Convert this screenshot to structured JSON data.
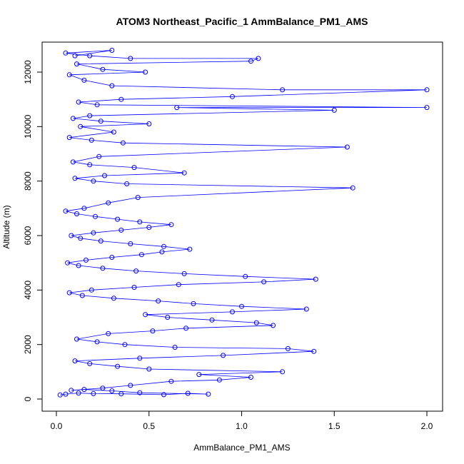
{
  "chart_data": {
    "type": "scatter",
    "title": "ATOM3 Northeast_Pacific_1 AmmBalance_PM1_AMS",
    "xlabel": "AmmBalance_PM1_AMS",
    "ylabel": "Altitude (m)",
    "xlim": [
      0,
      2.0
    ],
    "ylim": [
      0,
      12800
    ],
    "x_ticks": [
      "0.0",
      "0.5",
      "1.0",
      "1.5",
      "2.0"
    ],
    "y_ticks": [
      "0",
      "2000",
      "4000",
      "6000",
      "8000",
      "10000",
      "12000"
    ],
    "series_color": "#0000ff",
    "marker": "open-circle",
    "line": "connected",
    "grid": false,
    "legend": "none",
    "x": [
      0.02,
      0.05,
      0.12,
      0.2,
      0.35,
      0.58,
      0.71,
      0.82,
      0.45,
      0.3,
      0.15,
      0.08,
      0.25,
      0.4,
      0.62,
      0.88,
      1.05,
      0.77,
      1.22,
      0.5,
      0.33,
      0.18,
      0.1,
      0.45,
      0.9,
      1.39,
      1.25,
      0.64,
      0.37,
      0.22,
      0.11,
      0.28,
      0.52,
      0.7,
      1.17,
      1.08,
      0.84,
      0.6,
      0.48,
      0.95,
      1.35,
      1.0,
      0.74,
      0.55,
      0.31,
      0.14,
      0.07,
      0.19,
      0.42,
      0.66,
      1.12,
      1.4,
      1.02,
      0.69,
      0.43,
      0.25,
      0.12,
      0.06,
      0.16,
      0.3,
      0.46,
      0.57,
      0.72,
      0.58,
      0.4,
      0.24,
      0.13,
      0.08,
      0.2,
      0.35,
      0.5,
      0.62,
      0.45,
      0.33,
      0.21,
      0.11,
      0.05,
      0.15,
      0.28,
      0.44,
      1.6,
      0.38,
      0.2,
      0.1,
      0.26,
      0.69,
      0.42,
      0.18,
      0.09,
      0.23,
      1.57,
      0.36,
      0.19,
      0.07,
      0.31,
      0.13,
      0.5,
      0.24,
      0.09,
      0.18,
      1.5,
      0.65,
      2.0,
      0.22,
      0.12,
      0.35,
      0.95,
      2.0,
      1.22,
      0.3,
      0.15,
      0.07,
      0.48,
      0.25,
      0.11,
      1.05,
      1.09,
      0.4,
      0.18,
      0.05,
      0.3,
      0.1
    ],
    "y": [
      150,
      180,
      220,
      200,
      190,
      160,
      210,
      180,
      230,
      300,
      350,
      320,
      400,
      500,
      650,
      700,
      800,
      900,
      1000,
      1100,
      1200,
      1300,
      1400,
      1500,
      1600,
      1750,
      1850,
      1900,
      2000,
      2100,
      2200,
      2400,
      2500,
      2600,
      2700,
      2800,
      2900,
      3000,
      3100,
      3200,
      3300,
      3400,
      3500,
      3600,
      3700,
      3800,
      3900,
      4000,
      4100,
      4200,
      4300,
      4400,
      4500,
      4600,
      4700,
      4800,
      4900,
      5000,
      5100,
      5200,
      5300,
      5400,
      5500,
      5600,
      5700,
      5800,
      5900,
      6000,
      6100,
      6200,
      6300,
      6400,
      6500,
      6600,
      6700,
      6800,
      6900,
      7000,
      7200,
      7400,
      7750,
      7900,
      8000,
      8100,
      8200,
      8300,
      8500,
      8600,
      8700,
      8900,
      9250,
      9400,
      9500,
      9600,
      9800,
      10000,
      10100,
      10200,
      10300,
      10400,
      10600,
      10700,
      10700,
      10800,
      10900,
      11000,
      11100,
      11350,
      11350,
      11500,
      11700,
      11900,
      12000,
      12100,
      12300,
      12400,
      12500,
      12500,
      12600,
      12700,
      12800,
      12600
    ]
  }
}
